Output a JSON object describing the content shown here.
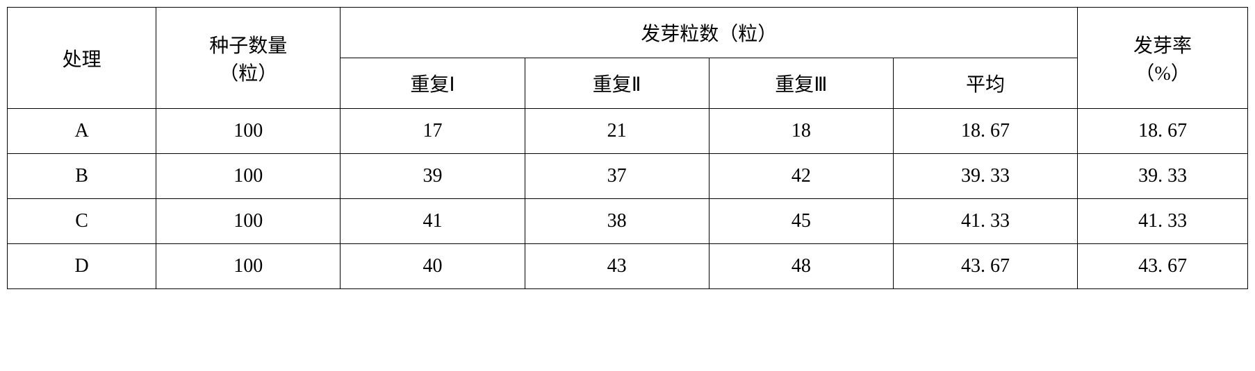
{
  "table": {
    "headers": {
      "treatment": "处理",
      "seedCount": "种子数量",
      "seedCountUnit": "（粒）",
      "germCount": "发芽粒数（粒）",
      "rep1": "重复Ⅰ",
      "rep2": "重复Ⅱ",
      "rep3": "重复Ⅲ",
      "average": "平均",
      "germRate": "发芽率",
      "germRateUnit": "（%）"
    },
    "rows": [
      {
        "treatment": "A",
        "seedCount": "100",
        "rep1": "17",
        "rep2": "21",
        "rep3": "18",
        "average": "18. 67",
        "germRate": "18. 67"
      },
      {
        "treatment": "B",
        "seedCount": "100",
        "rep1": "39",
        "rep2": "37",
        "rep3": "42",
        "average": "39. 33",
        "germRate": "39. 33"
      },
      {
        "treatment": "C",
        "seedCount": "100",
        "rep1": "41",
        "rep2": "38",
        "rep3": "45",
        "average": "41. 33",
        "germRate": "41. 33"
      },
      {
        "treatment": "D",
        "seedCount": "100",
        "rep1": "40",
        "rep2": "43",
        "rep3": "48",
        "average": "43. 67",
        "germRate": "43. 67"
      }
    ]
  },
  "styling": {
    "borderColor": "#000000",
    "borderWidth": 1.5,
    "backgroundColor": "#ffffff",
    "textColor": "#000000",
    "fontSize": 28,
    "fontFamily": "SimSun",
    "cellPaddingV": 16,
    "cellPaddingH": 8,
    "columnWidths": {
      "treatment": "10.5%",
      "seeds": "13%",
      "rep": "13%",
      "rate": "12%"
    }
  }
}
